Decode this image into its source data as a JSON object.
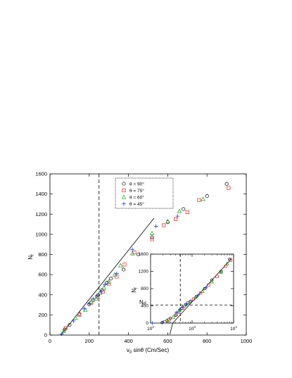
{
  "chart_data": [
    {
      "type": "scatter",
      "xlabel": "v",
      "xlabel_sub": "0",
      "xlabel_rest": " sinθ (Cm/Sec)",
      "ylabel": "N",
      "ylabel_sub": "f",
      "xlim": [
        0,
        1000
      ],
      "ylim": [
        0,
        1600
      ],
      "xticks": [
        0,
        200,
        400,
        600,
        800,
        1000
      ],
      "yticks": [
        0,
        200,
        400,
        600,
        800,
        1000,
        1200,
        1400,
        1600
      ],
      "xtick_labels": [
        "0",
        "200",
        "400",
        "600",
        "800",
        "1000"
      ],
      "ytick_labels": [
        "0",
        "200",
        "400",
        "600",
        "800",
        "1000",
        "1200",
        "1400",
        "1600"
      ],
      "legend_position": "top-center",
      "fit_line": {
        "x": [
          55,
          530
        ],
        "y": [
          0,
          1160
        ]
      },
      "dashed_vline_x": 250,
      "series": [
        {
          "name": "θ = 90°",
          "marker": "circle",
          "color": "#000000",
          "x": [
            75,
            100,
            150,
            200,
            220,
            245,
            265,
            290,
            310,
            375,
            450,
            520,
            600,
            680,
            800,
            900
          ],
          "y": [
            55,
            100,
            210,
            305,
            345,
            395,
            445,
            520,
            560,
            650,
            800,
            970,
            1120,
            1250,
            1380,
            1500
          ]
        },
        {
          "name": "θ = 75°",
          "marker": "square",
          "color": "#d62728",
          "x": [
            80,
            150,
            210,
            240,
            270,
            300,
            340,
            380,
            430,
            520,
            580,
            640,
            700,
            760,
            910
          ],
          "y": [
            70,
            200,
            320,
            380,
            430,
            510,
            580,
            700,
            820,
            950,
            1090,
            1150,
            1220,
            1340,
            1460
          ]
        },
        {
          "name": "θ = 60°",
          "marker": "triangle",
          "color": "#1a9e1a",
          "x": [
            70,
            130,
            180,
            210,
            235,
            255,
            275,
            300,
            330,
            360,
            420,
            520,
            600,
            660,
            780
          ],
          "y": [
            40,
            170,
            250,
            330,
            360,
            420,
            470,
            530,
            600,
            690,
            810,
            1010,
            1130,
            1230,
            1350
          ]
        },
        {
          "name": "θ = 45°",
          "marker": "plus",
          "color": "#1f3bd8",
          "x": [
            60,
            120,
            175,
            200,
            220,
            240,
            260,
            280,
            340,
            420,
            540,
            650
          ],
          "y": [
            10,
            140,
            260,
            310,
            360,
            390,
            430,
            500,
            610,
            850,
            1080,
            1180
          ]
        }
      ]
    },
    {
      "type": "scatter",
      "xscale": "log",
      "xlim": [
        100,
        10000
      ],
      "ylim": [
        0,
        1600
      ],
      "xticks": [
        100,
        1000,
        10000
      ],
      "yticks": [
        0,
        400,
        800,
        1200,
        1600
      ],
      "xtick_base": [
        "10",
        "10",
        "10"
      ],
      "xtick_exp": [
        "2",
        "3",
        "4"
      ],
      "ytick_labels": [
        "0",
        "400",
        "800",
        "1200",
        "1600"
      ],
      "ylabel": "N",
      "ylabel_sub": "f",
      "annotation": "N",
      "annotation_sub": "f",
      "annotation_rest": "c",
      "dashed_hline_y": 420,
      "dashed_vline_x": 520,
      "fit_line": {
        "x": [
          300,
          9000
        ],
        "y": [
          -60,
          1500
        ]
      },
      "series": [
        {
          "name": "θ = 90°",
          "marker": "circle",
          "color": "#000000",
          "x": [
            190,
            250,
            300,
            400,
            480,
            560,
            700,
            900,
            1300,
            2000,
            3000,
            5000,
            8000
          ],
          "y": [
            10,
            60,
            110,
            180,
            260,
            340,
            430,
            500,
            620,
            800,
            1000,
            1200,
            1480
          ]
        },
        {
          "name": "θ = 75°",
          "marker": "square",
          "color": "#d62728",
          "x": [
            220,
            280,
            420,
            600,
            800,
            1100,
            1600,
            2500,
            4000,
            6500,
            8500
          ],
          "y": [
            30,
            80,
            200,
            350,
            470,
            560,
            700,
            880,
            1080,
            1320,
            1460
          ]
        },
        {
          "name": "θ = 60°",
          "marker": "triangle",
          "color": "#1a9e1a",
          "x": [
            260,
            350,
            500,
            650,
            850,
            1200,
            1800,
            3000,
            5000,
            7000
          ],
          "y": [
            50,
            140,
            300,
            400,
            480,
            600,
            740,
            960,
            1180,
            1380
          ]
        },
        {
          "name": "θ = 45°",
          "marker": "plus",
          "color": "#1f3bd8",
          "x": [
            110,
            200,
            420,
            500,
            600,
            750,
            950,
            1400,
            2200
          ],
          "y": [
            0,
            20,
            250,
            320,
            380,
            440,
            520,
            650,
            820
          ]
        }
      ]
    }
  ]
}
